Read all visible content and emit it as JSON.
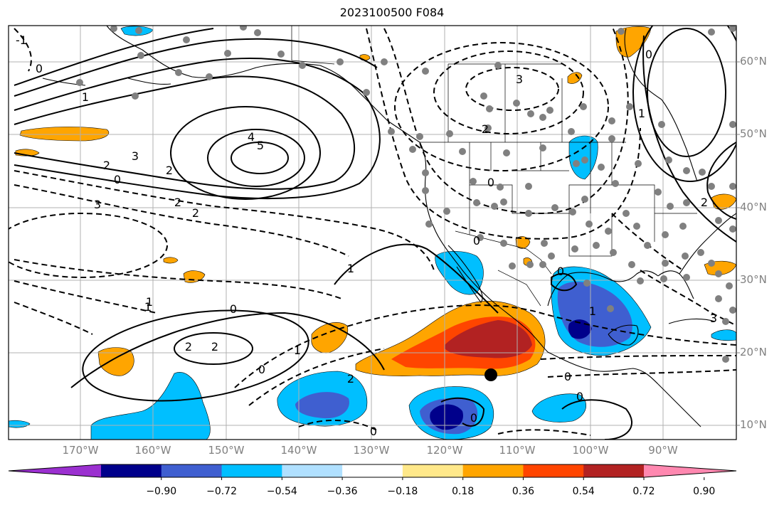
{
  "title": "2023100500 F084",
  "lat_labels": [
    "60°N",
    "50°N",
    "40°N",
    "30°N",
    "20°N",
    "10°N"
  ],
  "lon_labels": [
    "170°W",
    "160°W",
    "150°W",
    "140°W",
    "130°W",
    "120°W",
    "110°W",
    "100°W",
    "90°W"
  ],
  "colorbar": {
    "labels": [
      "−0.90",
      "−0.72",
      "−0.54",
      "−0.36",
      "−0.18",
      "0.18",
      "0.36",
      "0.54",
      "0.72",
      "0.90"
    ],
    "colors": [
      "#9b30d0",
      "#00008b",
      "#3f5fd0",
      "#00bfff",
      "#b0e0ff",
      "#ffffff",
      "#ffe88a",
      "#ffa500",
      "#ff4500",
      "#b22222",
      "#ff88b0"
    ]
  },
  "contour_labels": [
    {
      "text": "0"
    },
    {
      "text": "1"
    },
    {
      "text": "3"
    },
    {
      "text": "2"
    },
    {
      "text": "0"
    },
    {
      "text": "2"
    },
    {
      "text": "4"
    },
    {
      "text": "5"
    },
    {
      "text": "3"
    },
    {
      "text": "2"
    },
    {
      "text": "2"
    },
    {
      "text": "-1"
    },
    {
      "text": "1"
    },
    {
      "text": "0"
    },
    {
      "text": "2"
    },
    {
      "text": "2"
    },
    {
      "text": "0"
    },
    {
      "text": "1"
    },
    {
      "text": "2"
    },
    {
      "text": "0"
    },
    {
      "text": "3"
    },
    {
      "text": "2"
    },
    {
      "text": "0"
    },
    {
      "text": "0"
    },
    {
      "text": "1"
    },
    {
      "text": "0"
    },
    {
      "text": "2"
    },
    {
      "text": "0"
    },
    {
      "text": "0"
    },
    {
      "text": "1"
    },
    {
      "text": "3"
    },
    {
      "text": "1"
    },
    {
      "text": "0"
    },
    {
      "text": "1"
    },
    {
      "text": "0"
    }
  ]
}
